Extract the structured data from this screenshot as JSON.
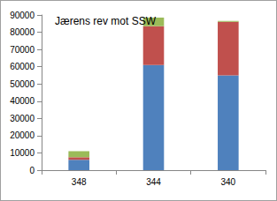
{
  "chart_data": {
    "type": "bar",
    "title": "Jærens rev mot SSW",
    "categories": [
      "348",
      "344",
      "340"
    ],
    "stacked": true,
    "series": [
      {
        "color": "#4f81bd",
        "values": [
          6000,
          61000,
          55000
        ]
      },
      {
        "color": "#c0504d",
        "values": [
          1500,
          22500,
          31000
        ]
      },
      {
        "color": "#9bbb59",
        "values": [
          3500,
          5000,
          500
        ]
      }
    ],
    "ylim": [
      0,
      90000
    ],
    "yticks": [
      0,
      10000,
      20000,
      30000,
      40000,
      50000,
      60000,
      70000,
      80000,
      90000
    ],
    "grid": false
  }
}
